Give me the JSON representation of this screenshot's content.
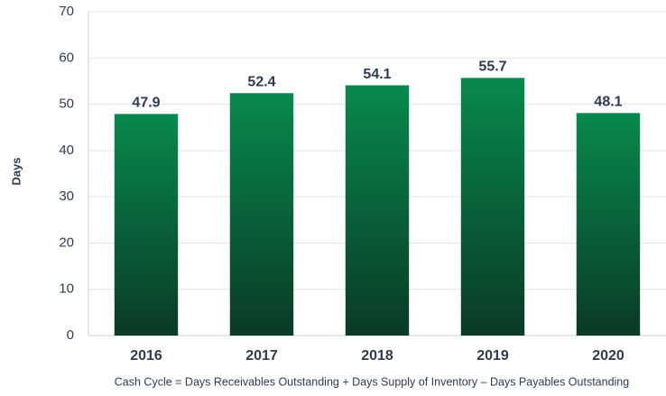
{
  "chart_data": {
    "type": "bar",
    "y_label": "Days",
    "categories": [
      "2016",
      "2017",
      "2018",
      "2019",
      "2020"
    ],
    "values": [
      47.9,
      52.4,
      54.1,
      55.7,
      48.1
    ],
    "gradient": [
      "#08894c",
      "#0a3a25"
    ],
    "ylim": [
      0,
      70
    ],
    "yticks": [
      0,
      10,
      20,
      30,
      40,
      50,
      60,
      70
    ],
    "grid": true,
    "annotation": "Cash Cycle = Days Receivables Outstanding + Days Supply of Inventory – Days Payables Outstanding"
  }
}
